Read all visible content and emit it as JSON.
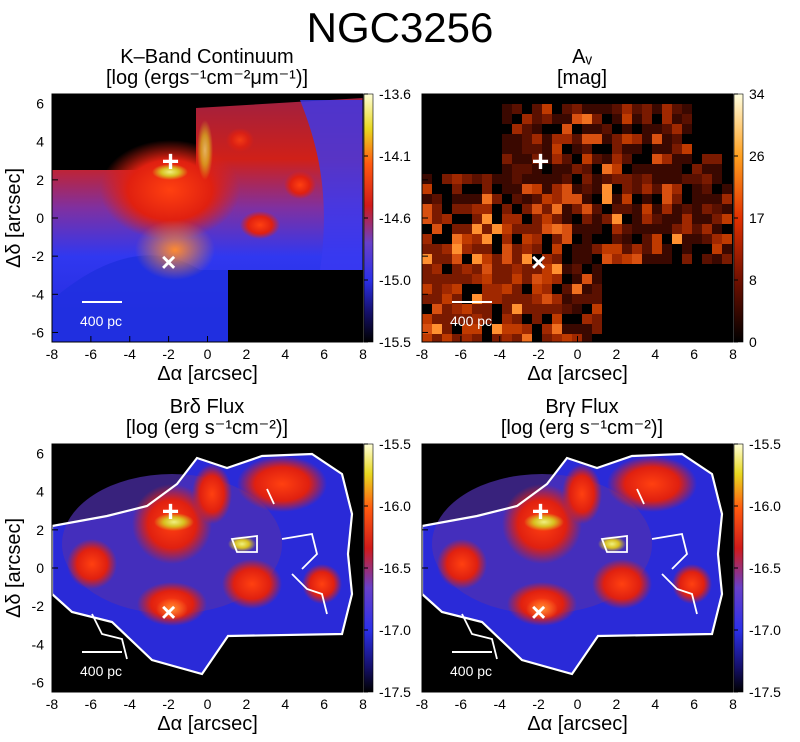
{
  "figure_title": "NGC3256",
  "chart_data": [
    {
      "type": "heatmap",
      "title_line1": "K–Band Continuum",
      "title_line2": "[log (ergs⁻¹cm⁻²μm⁻¹)]",
      "xlabel": "Δα [arcsec]",
      "ylabel": "Δδ [arcsec]",
      "xlim": [
        -8,
        8
      ],
      "ylim": [
        -6.5,
        6.5
      ],
      "xticks": [
        -8,
        -6,
        -4,
        -2,
        0,
        2,
        4,
        6,
        8
      ],
      "yticks": [
        -6,
        -4,
        -2,
        0,
        2,
        4,
        6
      ],
      "colorbar_ticks": [
        "-13.6",
        "-14.1",
        "-14.6",
        "-15.0",
        "-15.5"
      ],
      "colormap": "blue-red-yellow",
      "contours": false,
      "scale_bar_label": "400 pc",
      "markers": [
        {
          "symbol": "+",
          "x": -1.9,
          "y": 2.9
        },
        {
          "symbol": "×",
          "x": -2.0,
          "y": -2.3
        }
      ]
    },
    {
      "type": "heatmap",
      "title_line1": "Aᵥ",
      "title_line2": "[mag]",
      "xlabel": "Δα [arcsec]",
      "ylabel": "",
      "xlim": [
        -8,
        8
      ],
      "ylim": [
        -6.5,
        6.5
      ],
      "xticks": [
        -8,
        -6,
        -4,
        -2,
        0,
        2,
        4,
        6,
        8
      ],
      "yticks": [],
      "colorbar_ticks": [
        "34",
        "26",
        "17",
        "8",
        "0"
      ],
      "colormap": "black-red-yellow",
      "contours": false,
      "scale_bar_label": "400 pc",
      "markers": [
        {
          "symbol": "+",
          "x": -1.9,
          "y": 2.9
        },
        {
          "symbol": "×",
          "x": -2.0,
          "y": -2.3
        }
      ]
    },
    {
      "type": "heatmap",
      "title_line1": "Brδ Flux",
      "title_line2": "[log (erg s⁻¹cm⁻²)]",
      "xlabel": "Δα [arcsec]",
      "ylabel": "Δδ [arcsec]",
      "xlim": [
        -8,
        8
      ],
      "ylim": [
        -6.5,
        6.5
      ],
      "xticks": [
        -8,
        -6,
        -4,
        -2,
        0,
        2,
        4,
        6,
        8
      ],
      "yticks": [
        -6,
        -4,
        -2,
        0,
        2,
        4,
        6
      ],
      "colorbar_ticks": [
        "-15.5",
        "-16.0",
        "-16.5",
        "-17.0",
        "-17.5"
      ],
      "colormap": "blue-red-yellow",
      "contours": true,
      "scale_bar_label": "400 pc",
      "markers": [
        {
          "symbol": "+",
          "x": -1.9,
          "y": 2.9
        },
        {
          "symbol": "×",
          "x": -2.0,
          "y": -2.3
        }
      ]
    },
    {
      "type": "heatmap",
      "title_line1": "Brγ Flux",
      "title_line2": "[log (erg s⁻¹cm⁻²)]",
      "xlabel": "Δα [arcsec]",
      "ylabel": "",
      "xlim": [
        -8,
        8
      ],
      "ylim": [
        -6.5,
        6.5
      ],
      "xticks": [
        -8,
        -6,
        -4,
        -2,
        0,
        2,
        4,
        6,
        8
      ],
      "yticks": [],
      "colorbar_ticks": [
        "-15.5",
        "-16.0",
        "-16.5",
        "-17.0",
        "-17.5"
      ],
      "colormap": "blue-red-yellow",
      "contours": true,
      "scale_bar_label": "400 pc",
      "markers": [
        {
          "symbol": "+",
          "x": -1.9,
          "y": 2.9
        },
        {
          "symbol": "×",
          "x": -2.0,
          "y": -2.3
        }
      ]
    }
  ]
}
